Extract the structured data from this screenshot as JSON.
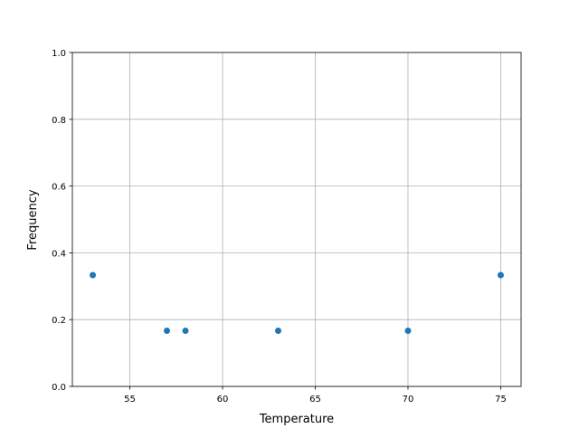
{
  "chart_data": {
    "type": "scatter",
    "title": "",
    "xlabel": "Temperature",
    "ylabel": "Frequency",
    "xlim": [
      51.9,
      76.1
    ],
    "ylim": [
      0,
      1.0
    ],
    "xticks": [
      55,
      60,
      65,
      70,
      75
    ],
    "xtick_labels": [
      "55",
      "60",
      "65",
      "70",
      "75"
    ],
    "yticks": [
      0,
      0.2,
      0.4,
      0.6,
      0.8,
      1.0
    ],
    "ytick_labels": [
      "0.0",
      "0.2",
      "0.4",
      "0.6",
      "0.8",
      "1.0"
    ],
    "grid": true,
    "color": "#1f77b4",
    "x": [
      53,
      57,
      58,
      63,
      70,
      75
    ],
    "y": [
      0.3333,
      0.1667,
      0.1667,
      0.1667,
      0.1667,
      0.3333
    ]
  }
}
